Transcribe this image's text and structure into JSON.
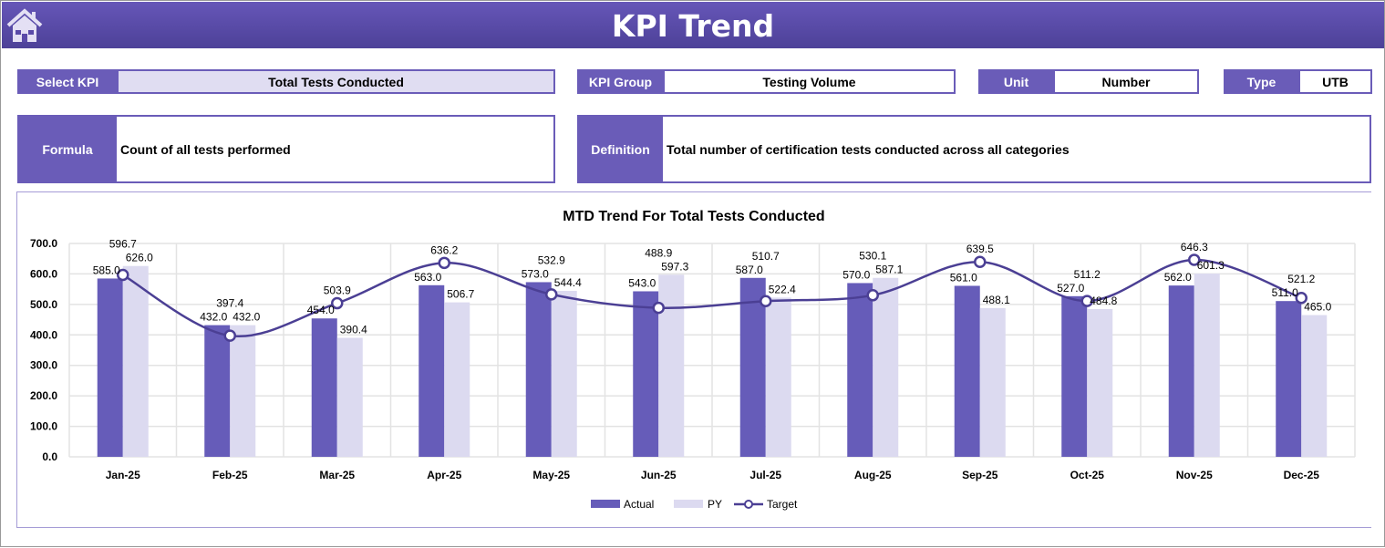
{
  "header": {
    "title": "KPI Trend",
    "home_icon": "home-icon"
  },
  "fields": {
    "select_kpi": {
      "label": "Select KPI",
      "value": "Total Tests Conducted"
    },
    "kpi_group": {
      "label": "KPI Group",
      "value": "Testing Volume"
    },
    "unit": {
      "label": "Unit",
      "value": "Number"
    },
    "type": {
      "label": "Type",
      "value": "UTB"
    },
    "formula": {
      "label": "Formula",
      "value": "Count of all tests performed"
    },
    "definition": {
      "label": "Definition",
      "value": "Total number of certification tests conducted across all categories"
    }
  },
  "colors": {
    "accent": "#6a5cb8",
    "actual": "#665cb9",
    "py": "#dcdaf0",
    "target": "#4b3f94"
  },
  "chart_data": {
    "type": "bar",
    "title": "MTD Trend For Total Tests Conducted",
    "categories": [
      "Jan-25",
      "Feb-25",
      "Mar-25",
      "Apr-25",
      "May-25",
      "Jun-25",
      "Jul-25",
      "Aug-25",
      "Sep-25",
      "Oct-25",
      "Nov-25",
      "Dec-25"
    ],
    "series": [
      {
        "name": "Actual",
        "type": "bar",
        "values": [
          585.0,
          432.0,
          454.0,
          563.0,
          573.0,
          543.0,
          587.0,
          570.0,
          561.0,
          527.0,
          562.0,
          511.0
        ]
      },
      {
        "name": "PY",
        "type": "bar",
        "values": [
          626.0,
          432.0,
          390.4,
          506.7,
          544.4,
          597.3,
          522.4,
          587.1,
          488.1,
          484.8,
          601.3,
          465.0
        ]
      },
      {
        "name": "Target",
        "type": "line",
        "values": [
          596.7,
          397.4,
          503.9,
          636.2,
          532.9,
          488.9,
          510.7,
          530.1,
          639.5,
          511.2,
          646.3,
          521.2
        ]
      }
    ],
    "yticks": [
      "0.0",
      "100.0",
      "200.0",
      "300.0",
      "400.0",
      "500.0",
      "600.0",
      "700.0"
    ],
    "ylim": [
      0,
      700
    ],
    "grid": true,
    "legend": "bottom"
  }
}
